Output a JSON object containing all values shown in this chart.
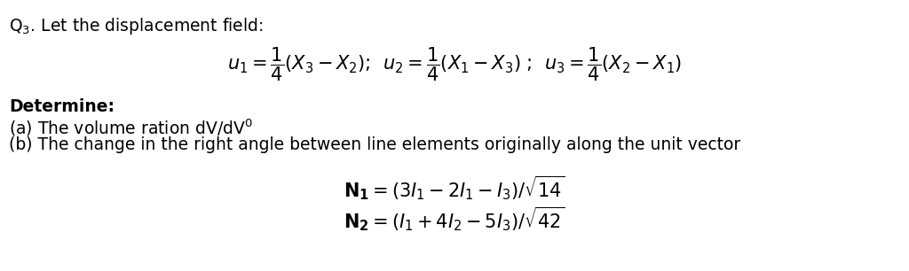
{
  "background_color": "#ffffff",
  "fig_width": 10.24,
  "fig_height": 3.06,
  "dpi": 100,
  "font_size_text": 13.5,
  "font_size_eq": 15,
  "lines": {
    "q3": "Q$_3$. Let the displacement field:",
    "equation": "$u_1 = \\dfrac{1}{4}(X_3 - X_2)$;  $u_2 = \\dfrac{1}{4}(X_1 - X_3)$ ;  $u_3 = \\dfrac{1}{4}(X_2 - X_1)$",
    "determine": "Determine:",
    "part_a": "(a) The volume ration dV/dV$^0$",
    "part_b": "(b) The change in the right angle between line elements originally along the unit vector",
    "n1": "$\\mathbf{N_1} = (3I_1 - 2I_1 - I_3)/\\sqrt{14}$",
    "n2": "$\\mathbf{N_2} = (I_1 + 4I_2 - 5I_3)/\\sqrt{42}$"
  }
}
